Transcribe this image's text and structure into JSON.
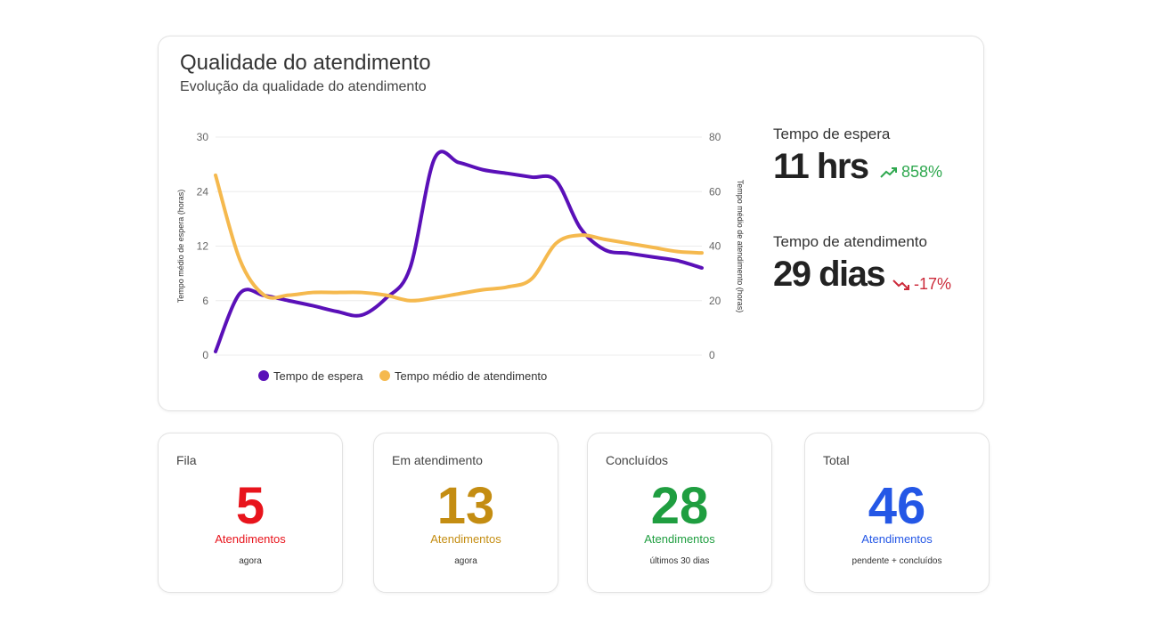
{
  "panel": {
    "title": "Qualidade do atendimento",
    "subtitle": "Evolução da qualidade do atendimento"
  },
  "metrics": [
    {
      "label": "Tempo de espera",
      "value": "11 hrs",
      "change": "858%",
      "direction": "up",
      "color": "#2fa84f"
    },
    {
      "label": "Tempo de atendimento",
      "value": "29 dias",
      "change": "-17%",
      "direction": "down",
      "color": "#cc2a3a"
    }
  ],
  "chart_data": {
    "type": "line",
    "title": "",
    "x": [
      0,
      0.5,
      1,
      1.5,
      2,
      2.5,
      3,
      3.5,
      4,
      4.5,
      5,
      5.5,
      6,
      6.5,
      7,
      7.5,
      8,
      8.5,
      9,
      9.5,
      10
    ],
    "left_axis": {
      "label": "Tempo médio de espera (horas)",
      "ticks": [
        "0",
        "6",
        "12",
        "24",
        "30"
      ],
      "ylim": [
        0,
        30
      ]
    },
    "right_axis": {
      "label": "Tempo médio de atendimento (horas)",
      "ticks": [
        "0",
        "20",
        "40",
        "60",
        "80"
      ],
      "ylim": [
        0,
        80
      ]
    },
    "series": [
      {
        "name": "Tempo de espera",
        "axis": "left",
        "color": "#5a10b8",
        "values": [
          0.5,
          8.5,
          8.2,
          7.5,
          6.8,
          6.0,
          5.5,
          7.8,
          12,
          27,
          26.5,
          25.5,
          25,
          24.5,
          24,
          17.5,
          14.5,
          14,
          13.5,
          13,
          12
        ]
      },
      {
        "name": "Tempo médio de atendimento",
        "axis": "right",
        "color": "#f5b94e",
        "values": [
          66,
          35,
          22,
          22,
          23,
          23,
          23,
          22,
          20,
          21,
          22.5,
          24,
          25,
          28,
          41,
          44,
          42.5,
          41,
          39.5,
          38,
          37.5
        ]
      }
    ],
    "legend_position": "bottom",
    "grid": true
  },
  "stats": [
    {
      "label": "Fila",
      "number": "5",
      "unit": "Atendimentos",
      "note": "agora",
      "color": "#e8141c"
    },
    {
      "label": "Em atendimento",
      "number": "13",
      "unit": "Atendimentos",
      "note": "agora",
      "color": "#c48d12"
    },
    {
      "label": "Concluídos",
      "number": "28",
      "unit": "Atendimentos",
      "note": "últimos 30 dias",
      "color": "#1f9e40"
    },
    {
      "label": "Total",
      "number": "46",
      "unit": "Atendimentos",
      "note": "pendente + concluídos",
      "color": "#2457e6"
    }
  ]
}
